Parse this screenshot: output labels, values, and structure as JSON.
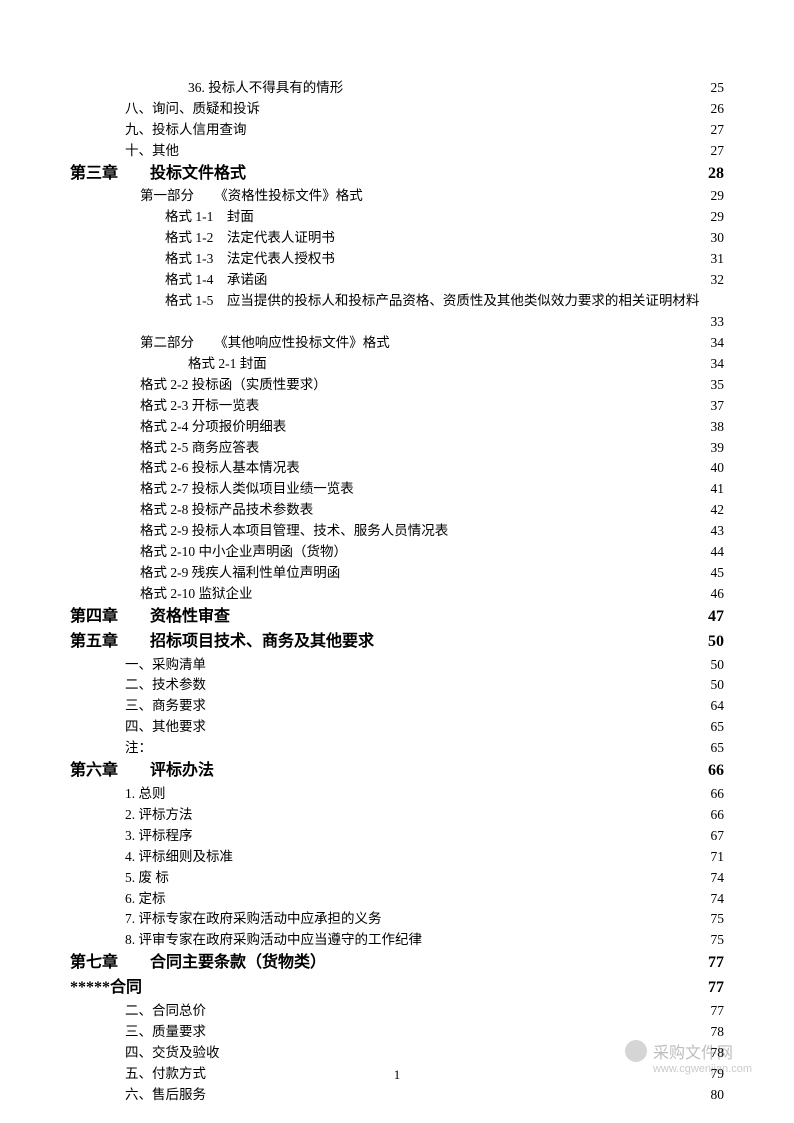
{
  "page_number": "1",
  "watermark": {
    "title": "采购文件网",
    "url": "www.cgwenjian.com"
  },
  "entries": [
    {
      "type": "item",
      "indent": "indent-3",
      "label": "36. 投标人不得具有的情形",
      "page": "25"
    },
    {
      "type": "item",
      "indent": "indent-1",
      "label": "八、询问、质疑和投诉",
      "page": "26"
    },
    {
      "type": "item",
      "indent": "indent-1",
      "label": "九、投标人信用查询",
      "page": "27"
    },
    {
      "type": "item",
      "indent": "indent-1",
      "label": "十、其他",
      "page": "27"
    },
    {
      "type": "chapter",
      "indent": "indent-0",
      "label": "第三章　　投标文件格式",
      "page": "28"
    },
    {
      "type": "item",
      "indent": "indent-1b",
      "label": "第一部分　　《资格性投标文件》格式",
      "page": "29"
    },
    {
      "type": "item",
      "indent": "indent-2",
      "label": "格式 1-1　封面",
      "page": "29"
    },
    {
      "type": "item",
      "indent": "indent-2",
      "label": "格式 1-2　法定代表人证明书",
      "page": "30"
    },
    {
      "type": "item",
      "indent": "indent-2",
      "label": "格式 1-3　法定代表人授权书",
      "page": "31"
    },
    {
      "type": "item",
      "indent": "indent-2",
      "label": "格式 1-4　承诺函",
      "page": "32"
    },
    {
      "type": "wrap",
      "indent": "indent-2",
      "label": "格式 1-5　应当提供的投标人和投标产品资格、资质性及其他类似效力要求的相关证明材料",
      "page": "33"
    },
    {
      "type": "item",
      "indent": "indent-1b",
      "label": "第二部分　　《其他响应性投标文件》格式",
      "page": "34"
    },
    {
      "type": "item",
      "indent": "indent-3",
      "label": "格式 2-1 封面",
      "page": "34"
    },
    {
      "type": "item",
      "indent": "indent-2b",
      "label": "格式 2-2 投标函（实质性要求）",
      "page": "35"
    },
    {
      "type": "item",
      "indent": "indent-2b",
      "label": "格式 2-3 开标一览表",
      "page": "37"
    },
    {
      "type": "item",
      "indent": "indent-2b",
      "label": "格式 2-4 分项报价明细表",
      "page": "38"
    },
    {
      "type": "item",
      "indent": "indent-2b",
      "label": "格式 2-5 商务应答表",
      "page": "39"
    },
    {
      "type": "item",
      "indent": "indent-2b",
      "label": "格式 2-6 投标人基本情况表",
      "page": "40"
    },
    {
      "type": "item",
      "indent": "indent-2b",
      "label": "格式 2-7 投标人类似项目业绩一览表",
      "page": "41"
    },
    {
      "type": "item",
      "indent": "indent-2b",
      "label": "格式 2-8 投标产品技术参数表",
      "page": "42"
    },
    {
      "type": "item",
      "indent": "indent-2b",
      "label": "格式 2-9 投标人本项目管理、技术、服务人员情况表",
      "page": "43"
    },
    {
      "type": "item",
      "indent": "indent-2b",
      "label": "格式 2-10 中小企业声明函（货物）",
      "page": "44"
    },
    {
      "type": "item",
      "indent": "indent-2b",
      "label": "格式 2-9 残疾人福利性单位声明函",
      "page": "45"
    },
    {
      "type": "item",
      "indent": "indent-2b",
      "label": "格式 2-10 监狱企业",
      "page": "46"
    },
    {
      "type": "chapter",
      "indent": "indent-0",
      "label": "第四章　　资格性审查",
      "page": "47"
    },
    {
      "type": "chapter",
      "indent": "indent-0",
      "label": "第五章　　招标项目技术、商务及其他要求",
      "page": "50"
    },
    {
      "type": "item",
      "indent": "indent-1",
      "label": "一、采购清单",
      "page": "50"
    },
    {
      "type": "item",
      "indent": "indent-1",
      "label": "二、技术参数",
      "page": "50"
    },
    {
      "type": "item",
      "indent": "indent-1",
      "label": "三、商务要求",
      "page": "64"
    },
    {
      "type": "item",
      "indent": "indent-1",
      "label": "四、其他要求",
      "page": "65"
    },
    {
      "type": "item",
      "indent": "indent-1",
      "label": "注：",
      "page": "65"
    },
    {
      "type": "chapter",
      "indent": "indent-0",
      "label": "第六章　　评标办法",
      "page": "66"
    },
    {
      "type": "item",
      "indent": "indent-1",
      "label": "1. 总则",
      "page": "66"
    },
    {
      "type": "item",
      "indent": "indent-1",
      "label": "2. 评标方法",
      "page": "66"
    },
    {
      "type": "item",
      "indent": "indent-1",
      "label": "3. 评标程序",
      "page": "67"
    },
    {
      "type": "item",
      "indent": "indent-1",
      "label": "4. 评标细则及标准",
      "page": "71"
    },
    {
      "type": "item",
      "indent": "indent-1",
      "label": "5. 废 标",
      "page": "74"
    },
    {
      "type": "item",
      "indent": "indent-1",
      "label": "6. 定标",
      "page": "74"
    },
    {
      "type": "item",
      "indent": "indent-1",
      "label": "7. 评标专家在政府采购活动中应承担的义务",
      "page": "75"
    },
    {
      "type": "item",
      "indent": "indent-1",
      "label": "8. 评审专家在政府采购活动中应当遵守的工作纪律",
      "page": "75"
    },
    {
      "type": "chapter",
      "indent": "indent-0",
      "label": "第七章　　合同主要条款（货物类）",
      "page": "77"
    },
    {
      "type": "chapter",
      "indent": "indent-0",
      "label": "*****合同",
      "page": "77"
    },
    {
      "type": "item",
      "indent": "indent-1",
      "label": "二、合同总价",
      "page": "77"
    },
    {
      "type": "item",
      "indent": "indent-1",
      "label": "三、质量要求",
      "page": "78"
    },
    {
      "type": "item",
      "indent": "indent-1",
      "label": "四、交货及验收",
      "page": "78"
    },
    {
      "type": "item",
      "indent": "indent-1",
      "label": "五、付款方式",
      "page": "79"
    },
    {
      "type": "item",
      "indent": "indent-1",
      "label": "六、售后服务",
      "page": "80"
    }
  ]
}
